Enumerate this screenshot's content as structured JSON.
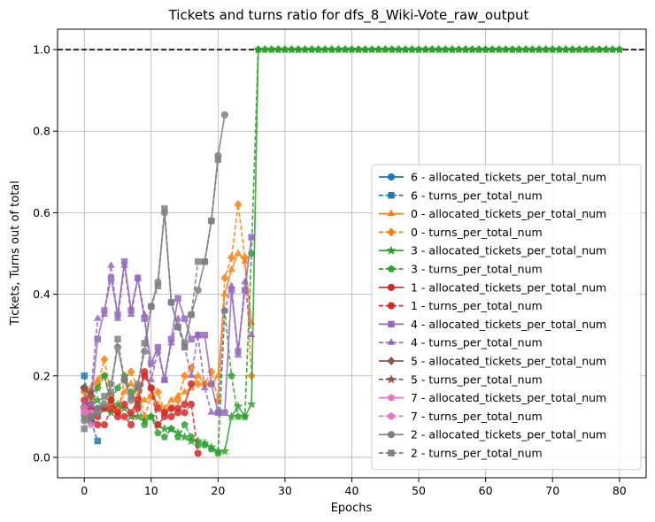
{
  "chart_data": {
    "type": "line",
    "title": "Tickets and turns ratio for dfs_8_Wiki-Vote_raw_output",
    "xlabel": "Epochs",
    "ylabel": "Tickets, Turns out of total",
    "xlim": [
      -4,
      84
    ],
    "ylim": [
      -0.05,
      1.05
    ],
    "xticks": [
      0,
      10,
      20,
      30,
      40,
      50,
      60,
      70,
      80
    ],
    "yticks": [
      0.0,
      0.2,
      0.4,
      0.6,
      0.8,
      1.0
    ],
    "xtick_labels": [
      "0",
      "10",
      "20",
      "30",
      "40",
      "50",
      "60",
      "70",
      "80"
    ],
    "ytick_labels": [
      "0.0",
      "0.2",
      "0.4",
      "0.6",
      "0.8",
      "1.0"
    ],
    "grid": true,
    "legend_position": "lower-right",
    "reference_line": {
      "y": 1.0,
      "style": "dashed",
      "color": "#000000"
    },
    "series": [
      {
        "name": "6 - allocated_tickets_per_total_num",
        "color": "#1f77b4",
        "marker": "circle",
        "dash": false,
        "x": [
          0,
          1,
          2
        ],
        "y": [
          0.17,
          0.09,
          0.12
        ]
      },
      {
        "name": "6 - turns_per_total_num",
        "color": "#1f77b4",
        "marker": "square",
        "dash": true,
        "x": [
          0,
          1,
          2
        ],
        "y": [
          0.2,
          0.09,
          0.04
        ]
      },
      {
        "name": "0 - allocated_tickets_per_total_num",
        "color": "#ff7f0e",
        "marker": "triangle",
        "dash": false,
        "x": [
          0,
          1,
          2,
          3,
          4,
          5,
          6,
          7,
          8,
          9,
          10,
          11,
          12,
          13,
          14,
          15,
          16,
          17,
          18,
          19,
          20,
          21,
          22,
          23,
          24,
          25
        ],
        "y": [
          0.13,
          0.17,
          0.19,
          0.2,
          0.13,
          0.12,
          0.16,
          0.18,
          0.15,
          0.14,
          0.15,
          0.13,
          0.12,
          0.14,
          0.15,
          0.16,
          0.17,
          0.2,
          0.18,
          0.18,
          0.2,
          0.4,
          0.46,
          0.5,
          0.48,
          0.33
        ]
      },
      {
        "name": "0 - turns_per_total_num",
        "color": "#ff7f0e",
        "marker": "diamond",
        "dash": true,
        "x": [
          0,
          1,
          2,
          3,
          4,
          5,
          6,
          7,
          8,
          9,
          10,
          11,
          12,
          13,
          14,
          15,
          16,
          17,
          18,
          19,
          20,
          21,
          22,
          23,
          24,
          25
        ],
        "y": [
          0.16,
          0.14,
          0.18,
          0.24,
          0.15,
          0.11,
          0.19,
          0.21,
          0.17,
          0.1,
          0.15,
          0.16,
          0.11,
          0.12,
          0.14,
          0.2,
          0.22,
          0.18,
          0.18,
          0.21,
          0.14,
          0.44,
          0.49,
          0.62,
          0.49,
          0.2
        ]
      },
      {
        "name": "3 - allocated_tickets_per_total_num",
        "color": "#2ca02c",
        "marker": "star",
        "dash": false,
        "x": [
          0,
          1,
          2,
          3,
          4,
          5,
          6,
          7,
          8,
          9,
          10,
          11,
          12,
          13,
          14,
          15,
          16,
          17,
          18,
          19,
          20,
          21,
          22,
          23,
          24,
          25,
          26,
          27,
          28,
          29,
          30,
          31,
          32,
          33,
          34,
          35,
          36,
          37,
          38,
          39,
          40,
          41,
          42,
          43,
          44,
          45,
          46,
          47,
          48,
          49,
          50,
          51,
          52,
          53,
          54,
          55,
          56,
          57,
          58,
          59,
          60,
          61,
          62,
          63,
          64,
          65,
          66,
          67,
          68,
          69,
          70,
          71,
          72,
          73,
          74,
          75,
          76,
          77,
          78,
          79,
          80
        ],
        "y": [
          0.12,
          0.13,
          0.14,
          0.12,
          0.11,
          0.13,
          0.12,
          0.1,
          0.1,
          0.09,
          0.1,
          0.08,
          0.07,
          0.07,
          0.06,
          0.05,
          0.04,
          0.04,
          0.035,
          0.025,
          0.015,
          0.015,
          0.1,
          0.125,
          0.1,
          0.13,
          1,
          1,
          1,
          1,
          1,
          1,
          1,
          1,
          1,
          1,
          1,
          1,
          1,
          1,
          1,
          1,
          1,
          1,
          1,
          1,
          1,
          1,
          1,
          1,
          1,
          1,
          1,
          1,
          1,
          1,
          1,
          1,
          1,
          1,
          1,
          1,
          1,
          1,
          1,
          1,
          1,
          1,
          1,
          1,
          1,
          1,
          1,
          1,
          1,
          1,
          1,
          1,
          1,
          1,
          1
        ]
      },
      {
        "name": "3 - turns_per_total_num",
        "color": "#2ca02c",
        "marker": "pentagon",
        "dash": true,
        "x": [
          0,
          1,
          2,
          3,
          4,
          5,
          6,
          7,
          8,
          9,
          10,
          11,
          12,
          13,
          14,
          15,
          16,
          17,
          18,
          19,
          20,
          21,
          22,
          23,
          24,
          25,
          26,
          27,
          28,
          29,
          30,
          31,
          32,
          33,
          34,
          35,
          36,
          37,
          38,
          39,
          40,
          41,
          42,
          43,
          44,
          45,
          46,
          47,
          48,
          49,
          50,
          51,
          52,
          53,
          54,
          55,
          56,
          57,
          58,
          59,
          60,
          61,
          62,
          63,
          64,
          65,
          66,
          67,
          68,
          69,
          70,
          71,
          72,
          73,
          74,
          75,
          76,
          77,
          78,
          79,
          80
        ],
        "y": [
          0.1,
          0.12,
          0.17,
          0.2,
          0.14,
          0.17,
          0.2,
          0.16,
          0.13,
          0.08,
          0.1,
          0.06,
          0.05,
          0.07,
          0.05,
          0.08,
          0.05,
          0.03,
          0.03,
          0.02,
          0.01,
          0.36,
          0.2,
          0.1,
          0.1,
          0.5,
          1,
          1,
          1,
          1,
          1,
          1,
          1,
          1,
          1,
          1,
          1,
          1,
          1,
          1,
          1,
          1,
          1,
          1,
          1,
          1,
          1,
          1,
          1,
          1,
          1,
          1,
          1,
          1,
          1,
          1,
          1,
          1,
          1,
          1,
          1,
          1,
          1,
          1,
          1,
          1,
          1,
          1,
          1,
          1,
          1,
          1,
          1,
          1,
          1,
          1,
          1,
          1,
          1,
          1,
          1
        ]
      },
      {
        "name": "1 - allocated_tickets_per_total_num",
        "color": "#d62728",
        "marker": "circle",
        "dash": false,
        "x": [
          0,
          1,
          2,
          3,
          4,
          5,
          6,
          7,
          8,
          9,
          10,
          11,
          12,
          13,
          14,
          15,
          16
        ],
        "y": [
          0.14,
          0.12,
          0.1,
          0.12,
          0.14,
          0.11,
          0.13,
          0.11,
          0.14,
          0.21,
          0.17,
          0.12,
          0.11,
          0.12,
          0.12,
          0.13,
          0.18
        ]
      },
      {
        "name": "1 - turns_per_total_num",
        "color": "#d62728",
        "marker": "circle",
        "dash": true,
        "x": [
          0,
          1,
          2,
          3,
          4,
          5,
          6,
          7,
          8,
          9,
          10,
          11,
          12,
          13,
          14,
          15,
          16,
          17
        ],
        "y": [
          0.12,
          0.1,
          0.08,
          0.08,
          0.12,
          0.1,
          0.1,
          0.08,
          0.12,
          0.2,
          0.17,
          0.08,
          0.1,
          0.1,
          0.11,
          0.11,
          0.13,
          0.01
        ]
      },
      {
        "name": "4 - allocated_tickets_per_total_num",
        "color": "#9467bd",
        "marker": "square",
        "dash": false,
        "x": [
          0,
          1,
          2,
          3,
          4,
          5,
          6,
          7,
          8,
          9,
          10,
          11,
          12,
          13,
          14,
          15,
          16,
          17,
          18,
          19,
          20,
          21,
          22,
          23,
          24,
          25
        ],
        "y": [
          0.11,
          0.13,
          0.29,
          0.36,
          0.44,
          0.35,
          0.48,
          0.36,
          0.44,
          0.34,
          0.23,
          0.27,
          0.19,
          0.29,
          0.39,
          0.34,
          0.29,
          0.3,
          0.3,
          0.18,
          0.11,
          0.11,
          0.41,
          0.26,
          0.41,
          0.54
        ]
      },
      {
        "name": "4 - turns_per_total_num",
        "color": "#9467bd",
        "marker": "triangle",
        "dash": true,
        "x": [
          0,
          1,
          2,
          3,
          4,
          5,
          6,
          7,
          8,
          9,
          10,
          11,
          12,
          13,
          14,
          15,
          16,
          17,
          18,
          19,
          20,
          21,
          22,
          23,
          24,
          25
        ],
        "y": [
          0.13,
          0.16,
          0.34,
          0.35,
          0.47,
          0.34,
          0.47,
          0.35,
          0.44,
          0.35,
          0.19,
          0.26,
          0.19,
          0.28,
          0.34,
          0.27,
          0.2,
          0.3,
          0.17,
          0.11,
          0.11,
          0.36,
          0.42,
          0.25,
          0.43,
          0.3
        ]
      },
      {
        "name": "5 - allocated_tickets_per_total_num",
        "color": "#8c564b",
        "marker": "diamond",
        "dash": false,
        "x": [
          0,
          1
        ],
        "y": [
          0.17,
          0.15
        ]
      },
      {
        "name": "5 - turns_per_total_num",
        "color": "#8c564b",
        "marker": "star",
        "dash": true,
        "x": [
          0,
          1
        ],
        "y": [
          0.17,
          0.16
        ]
      },
      {
        "name": "7 - allocated_tickets_per_total_num",
        "color": "#e377c2",
        "marker": "pentagon",
        "dash": false,
        "x": [
          0,
          1
        ],
        "y": [
          0.12,
          0.08
        ]
      },
      {
        "name": "7 - turns_per_total_num",
        "color": "#e377c2",
        "marker": "hexagon",
        "dash": true,
        "x": [
          0,
          1
        ],
        "y": [
          0.11,
          0.11
        ]
      },
      {
        "name": "2 - allocated_tickets_per_total_num",
        "color": "#7f7f7f",
        "marker": "circle",
        "dash": false,
        "x": [
          0,
          1,
          2,
          3,
          4,
          5,
          6,
          7,
          8,
          9,
          10,
          11,
          12,
          13,
          14,
          15,
          16,
          17,
          18,
          19,
          20,
          21
        ],
        "y": [
          0.09,
          0.1,
          0.12,
          0.13,
          0.18,
          0.27,
          0.19,
          0.14,
          0.18,
          0.26,
          0.37,
          0.43,
          0.6,
          0.38,
          0.32,
          0.28,
          0.35,
          0.41,
          0.48,
          0.58,
          0.74,
          0.84
        ]
      },
      {
        "name": "2 - turns_per_total_num",
        "color": "#7f7f7f",
        "marker": "square",
        "dash": true,
        "x": [
          0,
          1,
          2,
          3,
          4,
          5,
          6,
          7,
          8,
          9,
          10,
          11,
          12,
          13,
          14,
          15,
          16,
          17,
          18,
          19,
          20
        ],
        "y": [
          0.07,
          0.1,
          0.11,
          0.15,
          0.16,
          0.29,
          0.19,
          0.15,
          0.17,
          0.28,
          0.37,
          0.42,
          0.61,
          0.38,
          0.32,
          0.27,
          0.35,
          0.48,
          0.48,
          0.58,
          0.73
        ]
      }
    ]
  }
}
